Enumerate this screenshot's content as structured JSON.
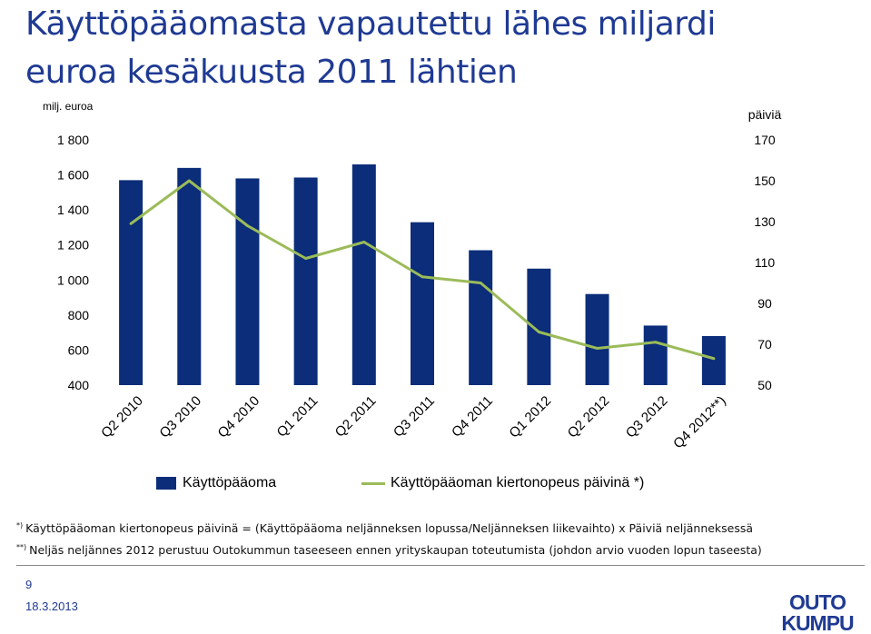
{
  "title_lines": [
    "Käyttöpääomasta vapautettu lähes miljardi",
    "euroa kesäkuusta 2011 lähtien"
  ],
  "chart_data": {
    "type": "bar",
    "categories": [
      "Q2 2010",
      "Q3 2010",
      "Q4 2010",
      "Q1 2011",
      "Q2 2011",
      "Q3 2011",
      "Q4 2011",
      "Q1 2012",
      "Q2 2012",
      "Q3 2012",
      "Q4 2012**)"
    ],
    "series": [
      {
        "name": "Käyttöpääoma",
        "type": "bar",
        "axis": "left",
        "color": "#0b2d7a",
        "values": [
          1570,
          1640,
          1580,
          1585,
          1660,
          1330,
          1170,
          1065,
          920,
          740,
          680
        ]
      },
      {
        "name": "Käyttöpääoman kiertonopeus päivinä *)",
        "type": "line",
        "axis": "right",
        "color": "#9bbb59",
        "values": [
          129,
          150,
          128,
          112,
          120,
          103,
          100,
          76,
          68,
          71,
          63
        ]
      }
    ],
    "ylabel_left": "milj. euroa",
    "ylabel_right": "päiviä",
    "ylim_left": [
      400,
      1800
    ],
    "yticks_left": [
      "1 800",
      "1 600",
      "1 400",
      "1 200",
      "1 000",
      "800",
      "600",
      "400"
    ],
    "ylim_right": [
      50,
      170
    ],
    "yticks_right": [
      "170",
      "150",
      "130",
      "110",
      "90",
      "70",
      "50"
    ],
    "grid": false,
    "legend_position": "bottom"
  },
  "footnotes": [
    {
      "marker": "*)",
      "text": "Käyttöpääoman kiertonopeus päivinä = (Käyttöpääoma neljänneksen lopussa/Neljänneksen liikevaihto) x Päiviä neljänneksessä"
    },
    {
      "marker": "**)",
      "text": "Neljäs neljännes 2012 perustuu Outokummun taseeseen ennen yrityskaupan toteutumista (johdon arvio vuoden lopun taseesta)"
    }
  ],
  "page_number": "9",
  "date": "18.3.2013",
  "logo": {
    "line1": "OUTO",
    "line2": "KUMPU",
    "color": "#1f3a93"
  }
}
